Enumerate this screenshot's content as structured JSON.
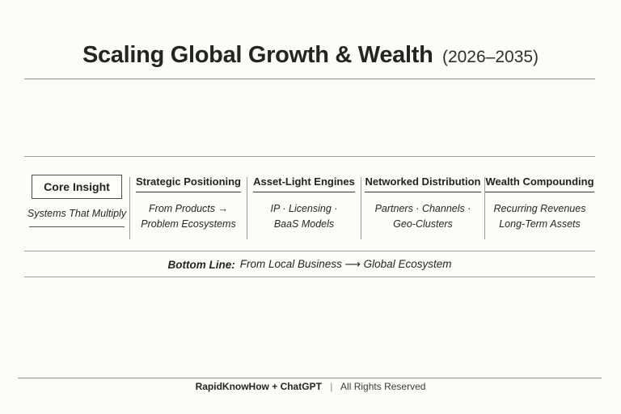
{
  "page": {
    "title": "Scaling Global Growth & Wealth",
    "title_suffix": "(2026–2035)"
  },
  "columns": [
    {
      "header": "Core Insight",
      "lines": [
        "Systems That Multiply",
        ""
      ]
    },
    {
      "header": "Strategic Positioning",
      "lines": [
        "From Products →",
        "Problem Ecosystems"
      ]
    },
    {
      "header": "Asset-Light Engines",
      "lines": [
        "IP · Licensing ·",
        "BaaS Models"
      ]
    },
    {
      "header": "Networked Distribution",
      "lines": [
        "Partners · Channels ·",
        "Geo-Clusters"
      ]
    },
    {
      "header": "Wealth Compounding",
      "lines": [
        "Recurring Revenues",
        "Long-Term Assets"
      ]
    }
  ],
  "bottom_line": {
    "label": "Bottom Line:",
    "text": "From Local Business ⟶ Global Ecosystem"
  },
  "footer": {
    "brand": "RapidKnowHow + ChatGPT",
    "separator": "|",
    "rights": "All Rights Reserved"
  },
  "colors": {
    "background": "#fcfcfa",
    "text": "#1f1f1f",
    "hairline": "#9a9a9a",
    "box_border": "#4d4d4d"
  }
}
